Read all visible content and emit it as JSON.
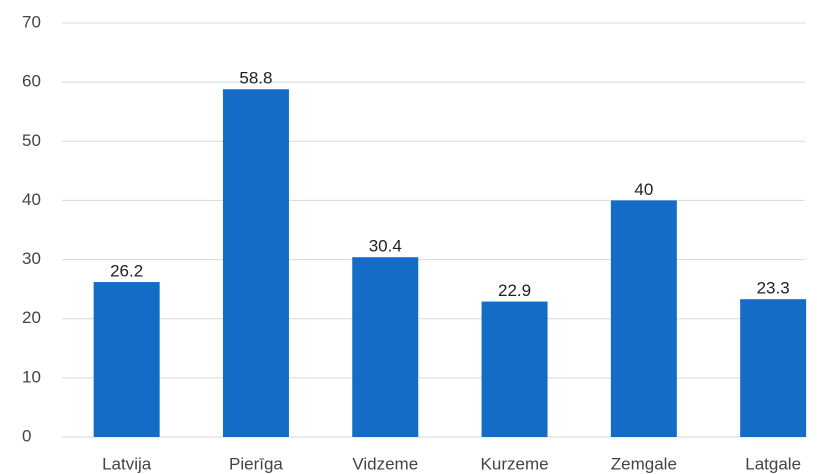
{
  "chart_data": {
    "type": "bar",
    "categories": [
      "Latvija",
      "Pierīga",
      "Vidzeme",
      "Kurzeme",
      "Zemgale",
      "Latgale"
    ],
    "values": [
      26.2,
      58.8,
      30.4,
      22.9,
      40,
      23.3
    ],
    "color": "#156cc6",
    "ylim": [
      0,
      70
    ],
    "yticks": [
      0,
      10,
      20,
      30,
      40,
      50,
      60,
      70
    ],
    "grid": true
  }
}
